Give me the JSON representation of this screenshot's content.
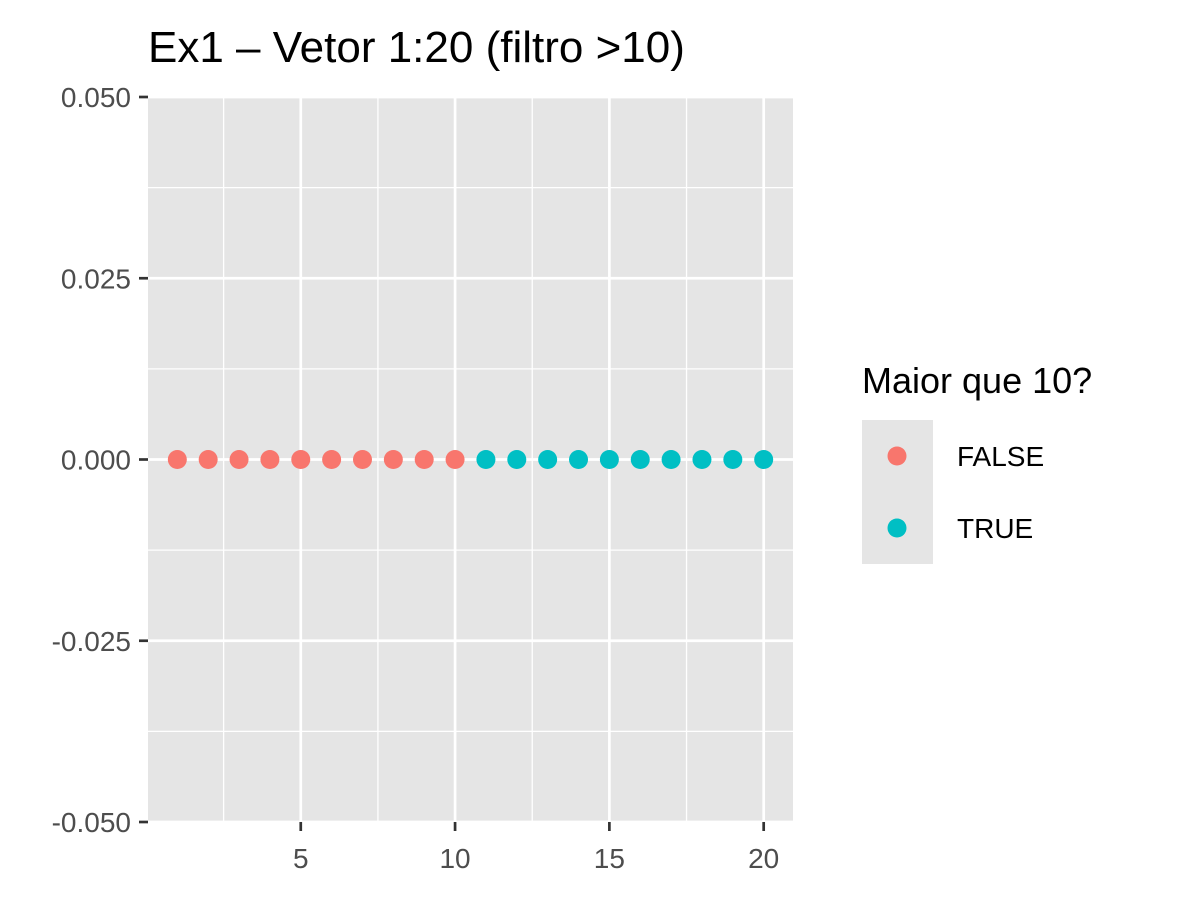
{
  "chart_data": {
    "type": "scatter",
    "title": "Ex1 – Vetor 1:20 (filtro >10)",
    "xlabel": "",
    "ylabel": "",
    "xlim": [
      0.05,
      20.95
    ],
    "ylim": [
      -0.05,
      0.05
    ],
    "x_ticks": [
      5,
      10,
      15,
      20
    ],
    "x_tick_labels": [
      "5",
      "10",
      "15",
      "20"
    ],
    "y_ticks": [
      -0.05,
      -0.025,
      0,
      0.025,
      0.05
    ],
    "y_tick_labels": [
      "-0.050",
      "-0.025",
      "0.000",
      "0.025",
      "0.050"
    ],
    "grid": true,
    "legend_position": "right",
    "legend": {
      "title": "Maior que 10?",
      "entries": [
        {
          "label": "FALSE",
          "color": "#F8766D"
        },
        {
          "label": "TRUE",
          "color": "#00BFC4"
        }
      ]
    },
    "series": [
      {
        "name": "FALSE",
        "color": "#F8766D",
        "points": [
          {
            "x": 1,
            "y": 0
          },
          {
            "x": 2,
            "y": 0
          },
          {
            "x": 3,
            "y": 0
          },
          {
            "x": 4,
            "y": 0
          },
          {
            "x": 5,
            "y": 0
          },
          {
            "x": 6,
            "y": 0
          },
          {
            "x": 7,
            "y": 0
          },
          {
            "x": 8,
            "y": 0
          },
          {
            "x": 9,
            "y": 0
          },
          {
            "x": 10,
            "y": 0
          }
        ]
      },
      {
        "name": "TRUE",
        "color": "#00BFC4",
        "points": [
          {
            "x": 11,
            "y": 0
          },
          {
            "x": 12,
            "y": 0
          },
          {
            "x": 13,
            "y": 0
          },
          {
            "x": 14,
            "y": 0
          },
          {
            "x": 15,
            "y": 0
          },
          {
            "x": 16,
            "y": 0
          },
          {
            "x": 17,
            "y": 0
          },
          {
            "x": 18,
            "y": 0
          },
          {
            "x": 19,
            "y": 0
          },
          {
            "x": 20,
            "y": 0
          }
        ]
      }
    ],
    "panel_background": "#E5E5E5",
    "grid_color": "#FFFFFF"
  }
}
